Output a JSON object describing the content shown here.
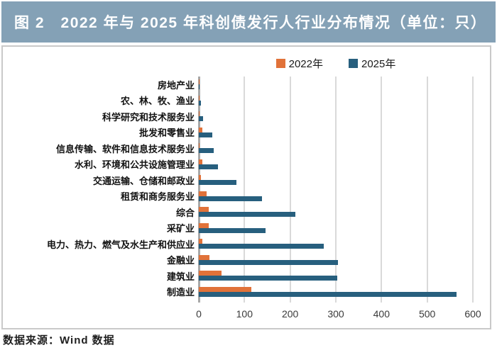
{
  "header": {
    "title": "图 2　2022 年与 2025 年科创债发行人行业分布情况（单位：只）"
  },
  "footer": {
    "source": "数据来源：Wind 数据"
  },
  "colors": {
    "banner_bg": "#84a1b6",
    "banner_text": "#ffffff",
    "series_2022": "#e17239",
    "series_2025": "#275f7e",
    "gridline": "#d9d9d9",
    "axis_line": "#a8a8a8",
    "frame_border": "#c9c9c9"
  },
  "chart_data": {
    "type": "bar",
    "orientation": "horizontal",
    "title": "2022 年与 2025 年科创债发行人行业分布情况",
    "unit": "只",
    "grid": true,
    "legend_position": "top-center",
    "xlim": [
      0,
      600
    ],
    "xticks": [
      0,
      100,
      200,
      300,
      400,
      500,
      600
    ],
    "categories": [
      "房地产业",
      "农、林、牧、渔业",
      "科学研究和技术服务业",
      "批发和零售业",
      "信息传输、软件和信息技术服务业",
      "水利、环境和公共设施管理业",
      "交通运输、仓储和邮政业",
      "租赁和商务服务业",
      "综合",
      "采矿业",
      "电力、热力、燃气及水生产和供应业",
      "金融业",
      "建筑业",
      "制造业"
    ],
    "series": [
      {
        "name": "2022年",
        "color": "#e17239",
        "values": [
          1,
          1,
          2,
          8,
          2,
          7,
          5,
          17,
          22,
          22,
          7,
          23,
          49,
          115
        ]
      },
      {
        "name": "2025年",
        "color": "#275f7e",
        "values": [
          2,
          5,
          10,
          30,
          33,
          42,
          82,
          138,
          211,
          146,
          273,
          304,
          303,
          565
        ]
      }
    ]
  }
}
